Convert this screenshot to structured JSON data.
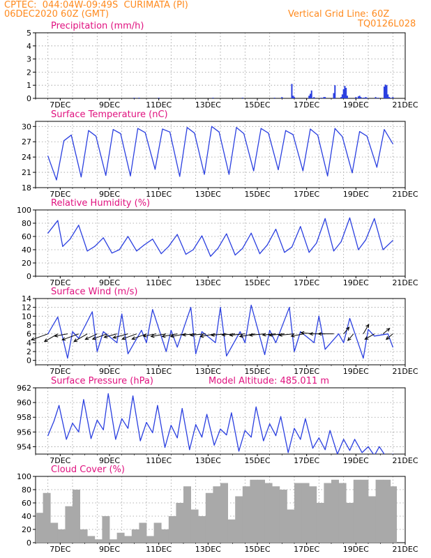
{
  "header": {
    "line1": "CPTEC:  044:04W-09:49S  CURIMATA (PI)",
    "line2": "06DEC2020 60Z (GMT)",
    "grid_note": "Vertical Grid Line: 60Z",
    "code": "TQ0126L028"
  },
  "colors": {
    "header": "#ff8a1e",
    "title": "#e0117f",
    "line": "#2a3fe0",
    "cloud": "#a9a9a9",
    "arrow": "#000000"
  },
  "x_ticks": [
    "7DEC",
    "9DEC",
    "11DEC",
    "13DEC",
    "15DEC",
    "17DEC",
    "19DEC",
    "21DEC"
  ],
  "chart_data": [
    {
      "id": "precip",
      "type": "bar",
      "title": "Precipitation (mm/h)",
      "x_unit": "days since 06DEC2020 00Z",
      "ylim": [
        0,
        5
      ],
      "yticks": [
        "0",
        "1",
        "2",
        "3",
        "4",
        "5"
      ],
      "x": [
        4.0,
        4.2,
        5.0,
        7.2,
        8.4,
        9.7,
        10.0,
        10.4,
        10.45,
        10.5,
        11.1,
        11.15,
        11.2,
        11.3,
        11.6,
        11.7,
        11.75,
        12.1,
        12.15,
        12.4,
        12.45,
        12.5,
        12.55,
        12.6,
        12.65,
        13.0,
        13.1,
        13.15,
        13.2,
        13.3,
        13.35,
        13.4,
        13.45,
        13.8,
        13.9,
        14.15,
        14.2,
        14.25,
        14.3,
        14.35,
        14.4,
        14.5
      ],
      "values": [
        0.05,
        0.05,
        0.05,
        0.05,
        0.05,
        0.05,
        0.1,
        1.1,
        0.2,
        0.1,
        0.2,
        0.35,
        0.6,
        0.1,
        0.05,
        0.1,
        0.1,
        0.4,
        1.0,
        0.1,
        0.3,
        0.7,
        0.95,
        0.8,
        0.2,
        0.1,
        0.15,
        0.2,
        0.1,
        0.05,
        0.05,
        0.1,
        0.05,
        0.1,
        0.05,
        0.9,
        1.05,
        1.0,
        0.3,
        0.1,
        0.05,
        0.1
      ]
    },
    {
      "id": "temp",
      "type": "line",
      "title": "Surface Temperature (nC)",
      "x_unit": "days since 06DEC2020 00Z",
      "ylim": [
        18,
        31
      ],
      "yticks": [
        "18",
        "21",
        "24",
        "27",
        "30"
      ],
      "x": [
        0.5,
        0.85,
        1.15,
        1.45,
        1.85,
        2.15,
        2.45,
        2.85,
        3.15,
        3.45,
        3.85,
        4.15,
        4.45,
        4.85,
        5.15,
        5.45,
        5.85,
        6.15,
        6.45,
        6.85,
        7.15,
        7.45,
        7.85,
        8.15,
        8.45,
        8.85,
        9.15,
        9.45,
        9.85,
        10.15,
        10.45,
        10.85,
        11.15,
        11.45,
        11.85,
        12.15,
        12.45,
        12.85,
        13.15,
        13.45,
        13.85,
        14.15,
        14.5
      ],
      "values": [
        24.2,
        19.5,
        27.2,
        28.3,
        20.1,
        29.2,
        28.1,
        20.4,
        29.4,
        28.6,
        20.3,
        29.6,
        28.8,
        21.6,
        29.5,
        28.9,
        20.2,
        29.8,
        28.7,
        20.6,
        30.0,
        28.9,
        20.6,
        29.8,
        28.6,
        21.3,
        29.6,
        28.7,
        21.5,
        29.2,
        28.4,
        21.3,
        29.5,
        28.3,
        20.3,
        29.6,
        28.0,
        20.9,
        29.0,
        28.1,
        22.0,
        29.4,
        26.6
      ]
    },
    {
      "id": "rh",
      "type": "line",
      "title": "Relative Humidity (%)",
      "x_unit": "days since 06DEC2020 00Z",
      "ylim": [
        0,
        100
      ],
      "yticks": [
        "0",
        "20",
        "40",
        "60",
        "80",
        "100"
      ],
      "x": [
        0.5,
        0.9,
        1.1,
        1.4,
        1.75,
        2.1,
        2.4,
        2.75,
        3.1,
        3.4,
        3.75,
        4.1,
        4.4,
        4.75,
        5.1,
        5.4,
        5.75,
        6.1,
        6.4,
        6.75,
        7.1,
        7.4,
        7.75,
        8.1,
        8.4,
        8.75,
        9.1,
        9.4,
        9.75,
        10.1,
        10.4,
        10.75,
        11.1,
        11.4,
        11.75,
        12.1,
        12.4,
        12.75,
        13.1,
        13.4,
        13.75,
        14.1,
        14.5
      ],
      "values": [
        65,
        84,
        45,
        56,
        77,
        38,
        45,
        58,
        35,
        40,
        60,
        38,
        47,
        56,
        34,
        45,
        63,
        33,
        40,
        61,
        30,
        42,
        64,
        32,
        42,
        65,
        34,
        47,
        71,
        36,
        44,
        75,
        36,
        50,
        87,
        38,
        52,
        88,
        40,
        55,
        87,
        40,
        54
      ]
    },
    {
      "id": "wind",
      "type": "line",
      "title": "Surface Wind (m/s)",
      "x_unit": "days since 06DEC2020 00Z",
      "ylim": [
        -1,
        14
      ],
      "yticks": [
        "0",
        "2",
        "4",
        "6",
        "8",
        "10",
        "12",
        "14"
      ],
      "x": [
        0.5,
        0.9,
        1.3,
        1.5,
        1.75,
        2.3,
        2.5,
        2.75,
        3.3,
        3.5,
        3.75,
        4.3,
        4.5,
        4.75,
        5.3,
        5.5,
        5.75,
        6.3,
        6.5,
        6.75,
        7.3,
        7.5,
        7.75,
        8.3,
        8.5,
        8.75,
        9.3,
        9.5,
        9.75,
        10.3,
        10.5,
        10.75,
        11.3,
        11.5,
        11.75,
        12.3,
        12.5,
        12.75,
        13.3,
        13.5,
        13.75,
        14.3,
        14.5
      ],
      "values": [
        6,
        9.8,
        0.5,
        6.5,
        5,
        11,
        2,
        6.5,
        4,
        10.5,
        1.5,
        6.8,
        4,
        11.5,
        2,
        6.8,
        3,
        12,
        1.5,
        6.5,
        4,
        12,
        1,
        6.5,
        4,
        12.5,
        1.3,
        6.8,
        4,
        12,
        2,
        6.5,
        4,
        10,
        2.5,
        6,
        4,
        9.5,
        0.5,
        7,
        5.5,
        6,
        3
      ]
    },
    {
      "id": "pressure",
      "type": "line",
      "title": "Surface Pressure (hPa)",
      "annotation": "Model Altitude: 485.011 m",
      "x_unit": "days since 06DEC2020 00Z",
      "ylim": [
        953,
        962
      ],
      "yticks": [
        "954",
        "956",
        "958",
        "960",
        "962"
      ],
      "x": [
        0.5,
        0.75,
        0.95,
        1.25,
        1.5,
        1.75,
        1.95,
        2.25,
        2.5,
        2.75,
        2.95,
        3.25,
        3.5,
        3.75,
        3.95,
        4.25,
        4.5,
        4.75,
        4.95,
        5.25,
        5.5,
        5.75,
        5.95,
        6.25,
        6.5,
        6.75,
        6.95,
        7.25,
        7.5,
        7.75,
        7.95,
        8.25,
        8.5,
        8.75,
        8.95,
        9.25,
        9.5,
        9.75,
        9.95,
        10.25,
        10.5,
        10.75,
        10.95,
        11.25,
        11.5,
        11.75,
        11.95,
        12.25,
        12.5,
        12.75,
        12.95,
        13.25,
        13.5,
        13.75,
        13.95,
        14.25,
        14.5
      ],
      "values": [
        955.5,
        957.5,
        959.6,
        955.0,
        957.2,
        956.0,
        960.4,
        955.1,
        957.6,
        956.3,
        961.2,
        955.0,
        957.8,
        956.5,
        960.9,
        954.8,
        957.3,
        955.9,
        959.6,
        953.9,
        956.9,
        955.2,
        959.2,
        953.6,
        957.0,
        955.3,
        958.4,
        954.2,
        956.4,
        955.6,
        958.6,
        953.4,
        956.2,
        955.3,
        959.4,
        954.8,
        957.1,
        955.5,
        958.1,
        953.2,
        956.5,
        955.0,
        957.8,
        953.8,
        955.2,
        953.6,
        956.2,
        953.0,
        955.0,
        953.5,
        955.0,
        953.2,
        954.0,
        952.8,
        954.0,
        952.5,
        953.0
      ]
    },
    {
      "id": "cloud",
      "type": "bar",
      "title": "Cloud Cover (%)",
      "x_unit": "days since 06DEC2020 00Z",
      "ylim": [
        0,
        100
      ],
      "yticks": [
        "0",
        "20",
        "40",
        "60",
        "80",
        "100"
      ],
      "x": [
        0.15,
        0.45,
        0.75,
        1.05,
        1.35,
        1.65,
        1.95,
        2.25,
        2.55,
        2.85,
        3.15,
        3.45,
        3.75,
        4.05,
        4.35,
        4.65,
        4.95,
        5.25,
        5.55,
        5.85,
        6.15,
        6.45,
        6.75,
        7.05,
        7.35,
        7.65,
        7.95,
        8.25,
        8.55,
        8.85,
        9.15,
        9.45,
        9.75,
        10.05,
        10.35,
        10.65,
        10.95,
        11.25,
        11.55,
        11.85,
        12.15,
        12.45,
        12.75,
        13.05,
        13.35,
        13.65,
        13.95,
        14.25,
        14.5
      ],
      "values": [
        45,
        75,
        30,
        20,
        55,
        80,
        20,
        10,
        5,
        40,
        5,
        15,
        10,
        20,
        30,
        10,
        30,
        20,
        40,
        60,
        85,
        50,
        40,
        75,
        85,
        90,
        35,
        70,
        85,
        95,
        95,
        90,
        85,
        80,
        50,
        90,
        90,
        85,
        60,
        90,
        95,
        90,
        60,
        95,
        95,
        70,
        95,
        95,
        85
      ]
    }
  ],
  "wind_arrows": {
    "days": [
      0.5,
      0.9,
      1.3,
      1.75,
      2.1,
      2.5,
      2.9,
      3.3,
      3.75,
      4.1,
      4.5,
      4.9,
      5.3,
      5.75,
      6.1,
      6.5,
      6.9,
      7.3,
      7.75,
      8.1,
      8.5,
      8.9,
      9.3,
      9.75,
      10.1,
      10.5,
      10.9,
      11.3,
      11.75,
      12.1,
      12.5,
      12.9,
      13.3,
      13.75,
      14.1,
      14.5
    ],
    "speeds": [
      6,
      5,
      4,
      6,
      5,
      4,
      5,
      4,
      5,
      5,
      5,
      4,
      5,
      5,
      5,
      4,
      5,
      5,
      5,
      4,
      5,
      5,
      5,
      4,
      5,
      5,
      4,
      4,
      5,
      5,
      2,
      2,
      3,
      3,
      2,
      2
    ],
    "directions_deg": [
      70,
      60,
      80,
      70,
      60,
      65,
      70,
      75,
      75,
      70,
      70,
      80,
      80,
      80,
      80,
      85,
      85,
      80,
      85,
      85,
      85,
      80,
      85,
      85,
      85,
      85,
      80,
      95,
      90,
      90,
      220,
      40,
      210,
      60,
      230,
      50
    ]
  }
}
